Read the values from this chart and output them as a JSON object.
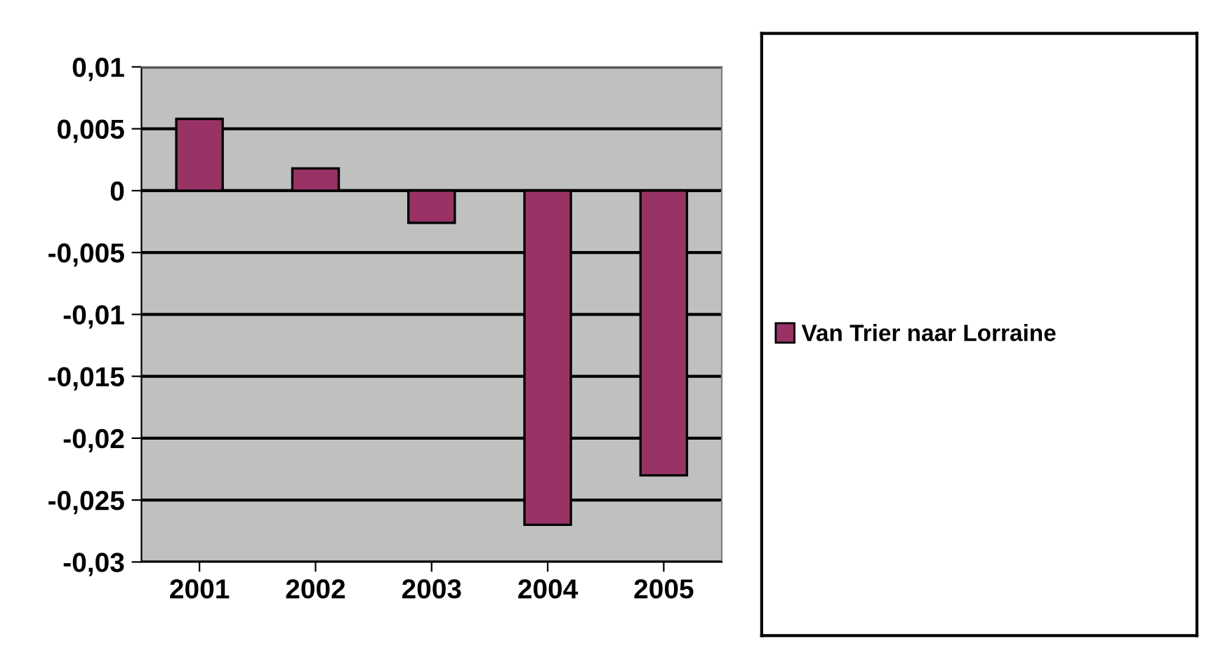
{
  "chart_data": {
    "type": "bar",
    "categories": [
      "2001",
      "2002",
      "2003",
      "2004",
      "2005"
    ],
    "series": [
      {
        "name": "Van Trier naar Lorraine",
        "color": "#993366",
        "values": [
          0.0058,
          0.0018,
          -0.0026,
          -0.027,
          -0.023
        ]
      }
    ],
    "ylim": [
      -0.03,
      0.01
    ],
    "yticks": [
      {
        "value": -0.03,
        "label": "-0,03"
      },
      {
        "value": -0.025,
        "label": "-0,025"
      },
      {
        "value": -0.02,
        "label": "-0,02"
      },
      {
        "value": -0.015,
        "label": "-0,015"
      },
      {
        "value": -0.01,
        "label": "-0,01"
      },
      {
        "value": -0.005,
        "label": "-0,005"
      },
      {
        "value": 0,
        "label": "0"
      },
      {
        "value": 0.005,
        "label": "0,005"
      },
      {
        "value": 0.01,
        "label": "0,01"
      }
    ],
    "grid": "y",
    "legend": "right"
  }
}
